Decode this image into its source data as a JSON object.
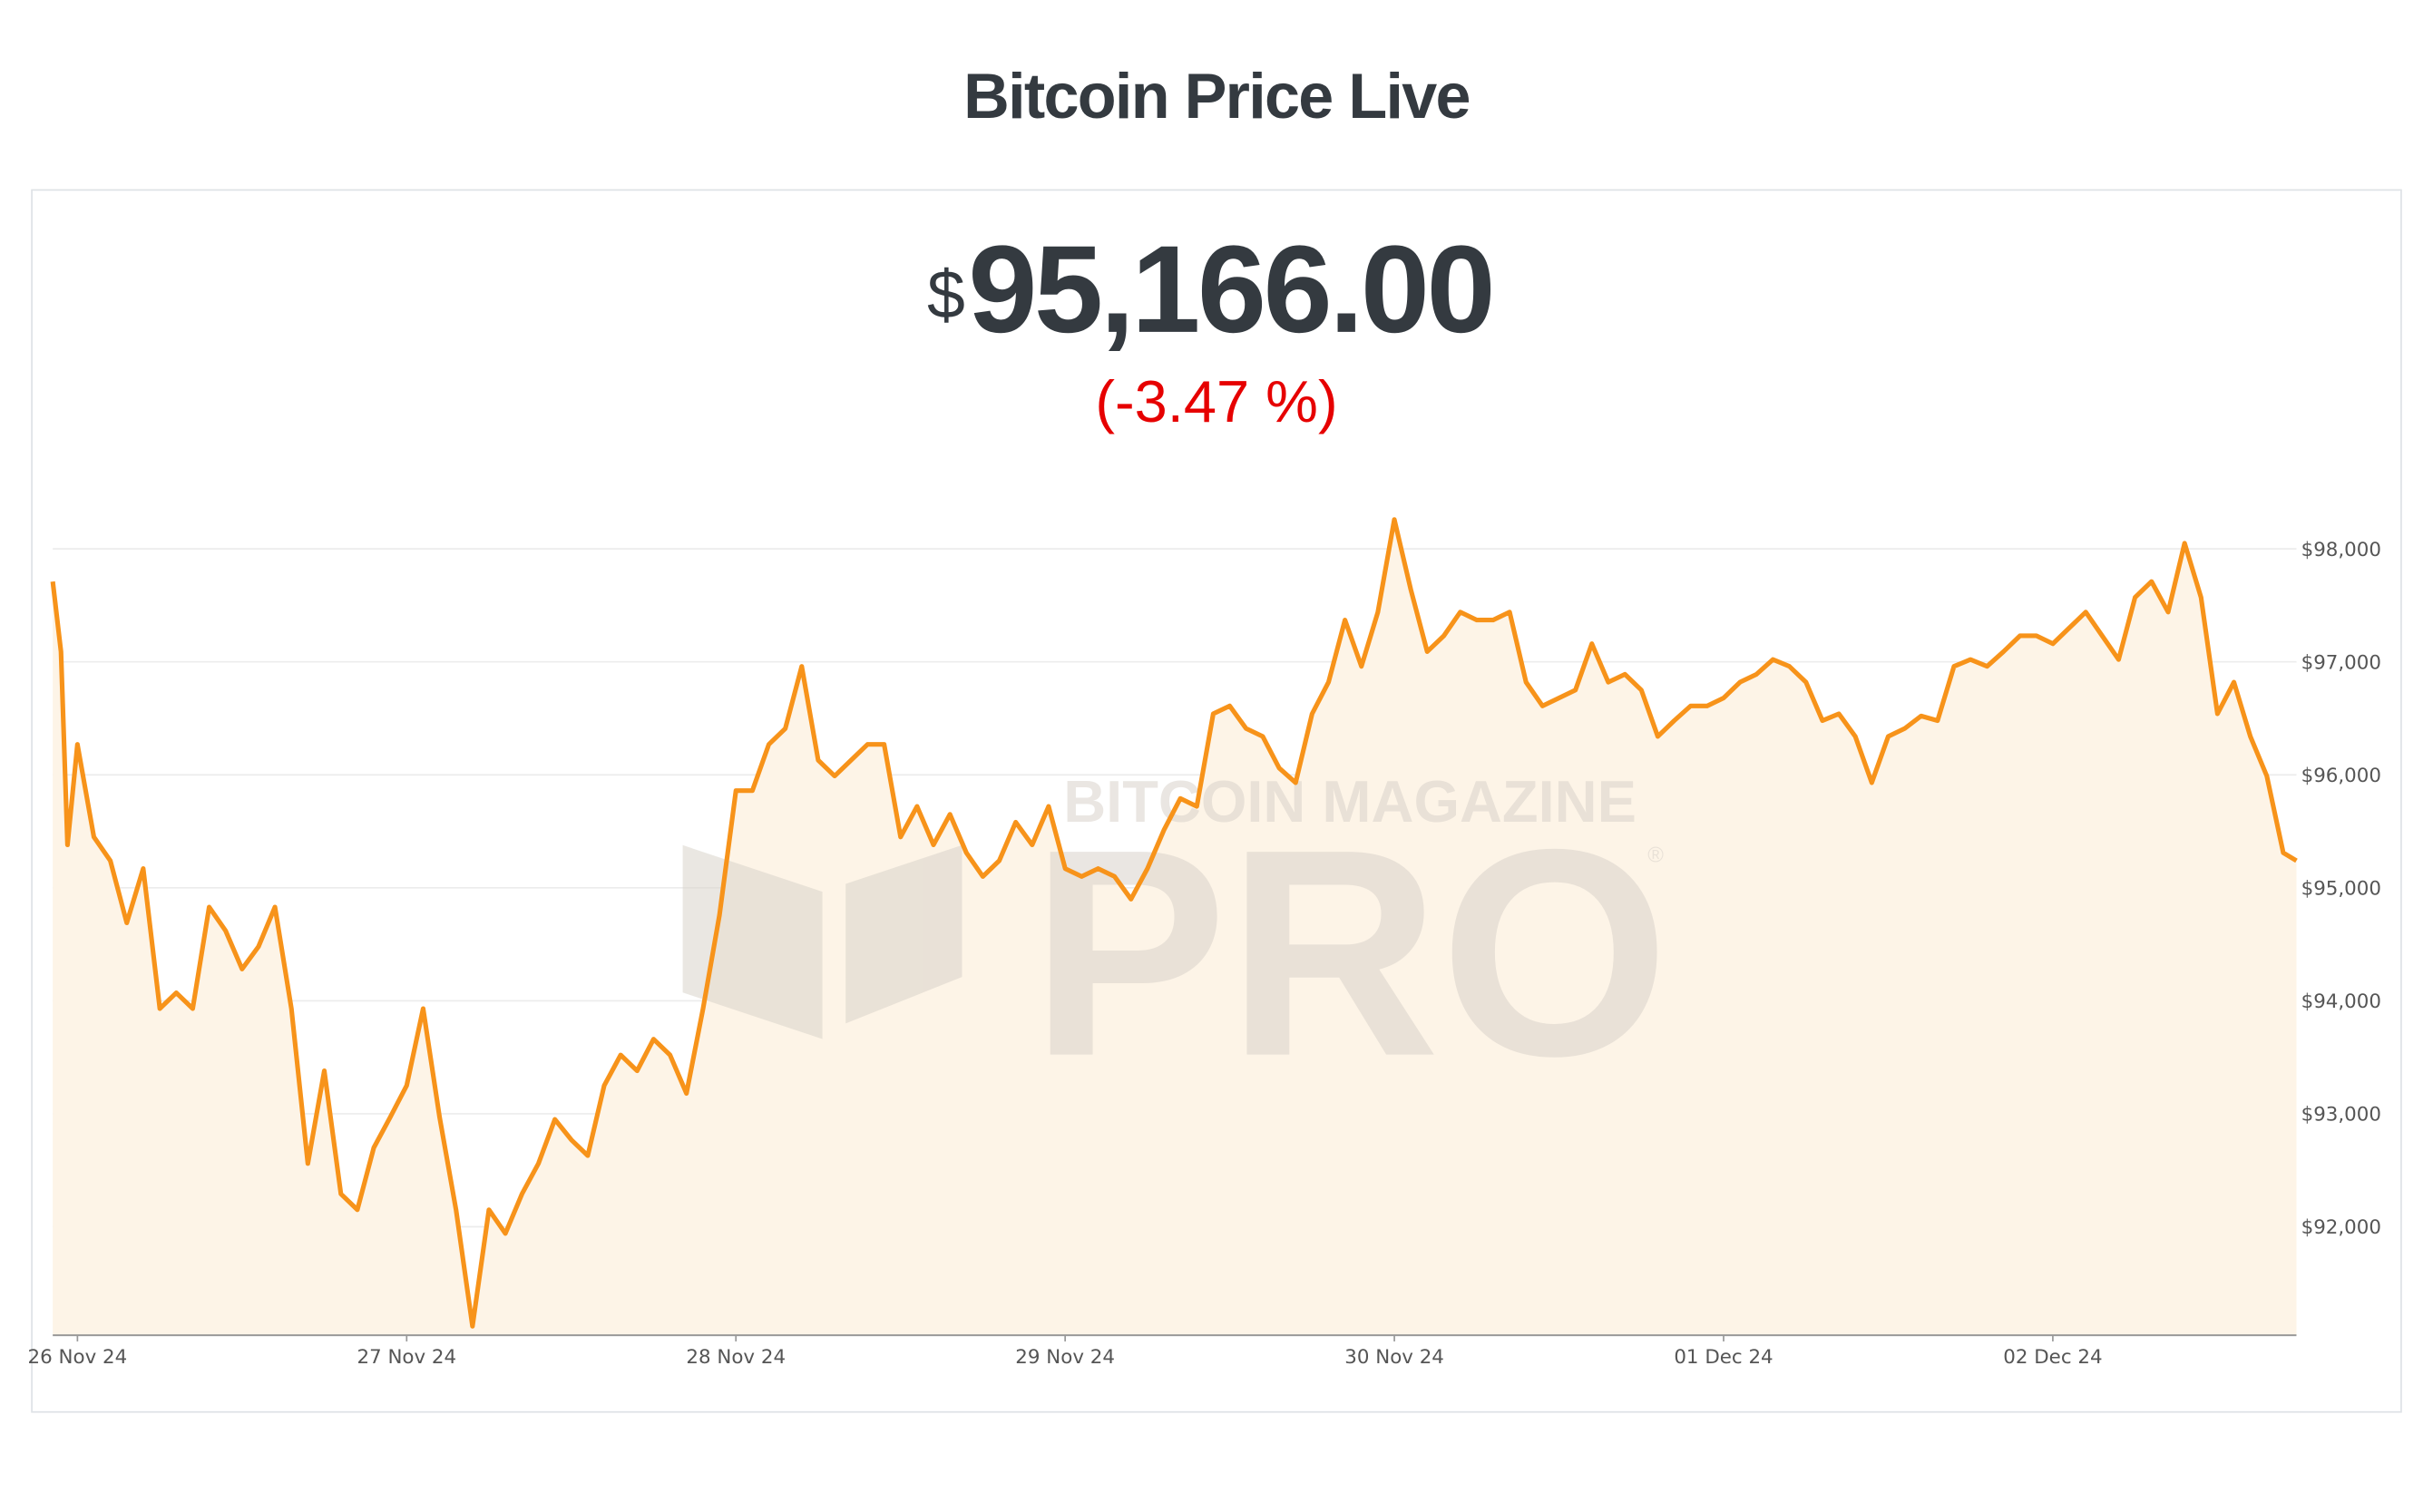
{
  "title": "Bitcoin Price Live",
  "price_symbol": "$",
  "price": "95,166.00",
  "change": "(-3.47 %)",
  "watermark": {
    "top": "BITCOIN MAGAZINE",
    "main": "PRO",
    "mark": "®"
  },
  "chart_data": {
    "type": "line",
    "x": [
      -0.075,
      -0.05,
      -0.03,
      0,
      0.05,
      0.1,
      0.15,
      0.2,
      0.25,
      0.3,
      0.35,
      0.4,
      0.45,
      0.5,
      0.55,
      0.6,
      0.65,
      0.7,
      0.75,
      0.8,
      0.85,
      0.9,
      0.95,
      1.0,
      1.05,
      1.1,
      1.15,
      1.2,
      1.25,
      1.3,
      1.35,
      1.4,
      1.45,
      1.5,
      1.55,
      1.6,
      1.65,
      1.7,
      1.75,
      1.8,
      1.85,
      1.9,
      1.95,
      2.0,
      2.05,
      2.1,
      2.15,
      2.2,
      2.25,
      2.3,
      2.35,
      2.4,
      2.45,
      2.5,
      2.55,
      2.6,
      2.65,
      2.7,
      2.75,
      2.8,
      2.85,
      2.9,
      2.95,
      3.0,
      3.05,
      3.1,
      3.15,
      3.2,
      3.25,
      3.3,
      3.35,
      3.4,
      3.45,
      3.5,
      3.55,
      3.6,
      3.65,
      3.7,
      3.75,
      3.8,
      3.85,
      3.9,
      3.95,
      4.0,
      4.05,
      4.1,
      4.15,
      4.2,
      4.25,
      4.3,
      4.35,
      4.4,
      4.45,
      4.5,
      4.55,
      4.6,
      4.65,
      4.7,
      4.75,
      4.8,
      4.85,
      4.9,
      4.95,
      5.0,
      5.05,
      5.1,
      5.15,
      5.2,
      5.25,
      5.3,
      5.35,
      5.4,
      5.45,
      5.5,
      5.55,
      5.6,
      5.65,
      5.7,
      5.75,
      5.8,
      5.85,
      5.9,
      5.95,
      6.0,
      6.05,
      6.1,
      6.15,
      6.2,
      6.25,
      6.3,
      6.35,
      6.4,
      6.45,
      6.5,
      6.55,
      6.6,
      6.65,
      6.7,
      6.74
    ],
    "series": [
      {
        "color": "#f7931a",
        "fill": "#fdf4e7",
        "values": [
          97710,
          97090,
          95380,
          96270,
          95450,
          95240,
          94690,
          95170,
          93930,
          94070,
          93930,
          94830,
          94620,
          94280,
          94480,
          94830,
          93930,
          92560,
          93380,
          92290,
          92150,
          92700,
          92970,
          93250,
          93930,
          92970,
          92150,
          91120,
          92150,
          91940,
          92290,
          92560,
          92950,
          92770,
          92630,
          93250,
          93520,
          93380,
          93660,
          93520,
          93180,
          93930,
          94760,
          95860,
          95860,
          96270,
          96410,
          96960,
          96130,
          95990,
          96130,
          96270,
          96270,
          95450,
          95720,
          95380,
          95650,
          95310,
          95100,
          95240,
          95580,
          95380,
          95720,
          95170,
          95100,
          95170,
          95100,
          94900,
          95170,
          95510,
          95790,
          95720,
          96540,
          96610,
          96410,
          96340,
          96060,
          95930,
          96540,
          96820,
          97370,
          96960,
          97440,
          98260,
          97640,
          97090,
          97230,
          97440,
          97370,
          97370,
          97440,
          96820,
          96610,
          96680,
          96750,
          97160,
          96820,
          96890,
          96750,
          96340,
          96480,
          96610,
          96610,
          96680,
          96820,
          96890,
          97020,
          96960,
          96820,
          96480,
          96540,
          96340,
          95930,
          96340,
          96410,
          96520,
          96480,
          96960,
          97020,
          96960,
          97090,
          97230,
          97230,
          97160,
          97300,
          97440,
          97230,
          97020,
          97570,
          97710,
          97440,
          98050,
          97570,
          96540,
          96820,
          96340,
          95990,
          95310,
          95240
        ]
      }
    ],
    "xlim": [
      -0.075,
      6.74
    ],
    "xticks": [
      {
        "value": 0,
        "label": "26 Nov 24"
      },
      {
        "value": 1,
        "label": "27 Nov 24"
      },
      {
        "value": 2,
        "label": "28 Nov 24"
      },
      {
        "value": 3,
        "label": "29 Nov 24"
      },
      {
        "value": 4,
        "label": "30 Nov 24"
      },
      {
        "value": 5,
        "label": "01 Dec 24"
      },
      {
        "value": 6,
        "label": "02 Dec 24"
      }
    ],
    "ylim": [
      91040,
      98740
    ],
    "yticks": [
      {
        "value": 92000,
        "label": "$92,000"
      },
      {
        "value": 93000,
        "label": "$93,000"
      },
      {
        "value": 94000,
        "label": "$94,000"
      },
      {
        "value": 95000,
        "label": "$95,000"
      },
      {
        "value": 96000,
        "label": "$96,000"
      },
      {
        "value": 97000,
        "label": "$97,000"
      },
      {
        "value": 98000,
        "label": "$98,000"
      }
    ],
    "grid": true
  }
}
